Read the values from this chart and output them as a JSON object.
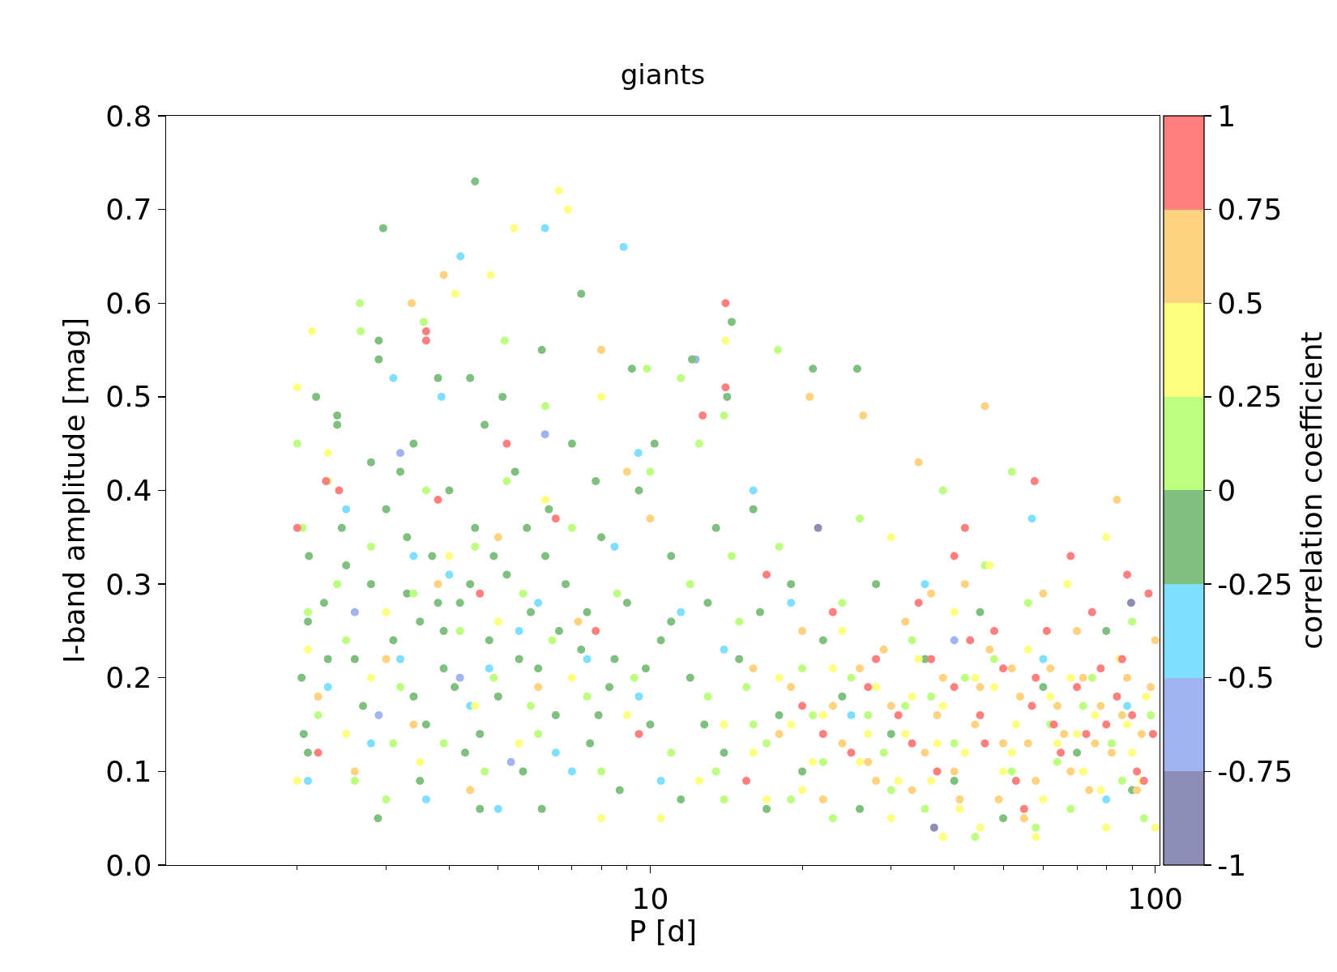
{
  "chart_data": {
    "type": "scatter",
    "title": "giants",
    "xlabel": "P [d]",
    "ylabel": "I-band amplitude [mag]",
    "clabel": "correlation coefficient",
    "log": "x",
    "grid": false,
    "marker": "circle",
    "xlim": [
      1.1,
      102
    ],
    "xticks": [
      {
        "value": 2,
        "label": null
      },
      {
        "value": 3,
        "label": null
      },
      {
        "value": 4,
        "label": null
      },
      {
        "value": 5,
        "label": null
      },
      {
        "value": 6,
        "label": null
      },
      {
        "value": 7,
        "label": null
      },
      {
        "value": 8,
        "label": null
      },
      {
        "value": 9,
        "label": null
      },
      10,
      {
        "value": 20,
        "label": null
      },
      {
        "value": 30,
        "label": null
      },
      {
        "value": 40,
        "label": null
      },
      {
        "value": 50,
        "label": null
      },
      {
        "value": 60,
        "label": null
      },
      {
        "value": 70,
        "label": null
      },
      {
        "value": 80,
        "label": null
      },
      {
        "value": 90,
        "label": null
      },
      100
    ],
    "ylim": [
      0,
      0.8
    ],
    "yticks": [
      {
        "value": 0,
        "label": "0.0"
      },
      0.1,
      0.2,
      0.3,
      0.4,
      0.5,
      0.6,
      0.7,
      0.8
    ],
    "clim": [
      -1,
      1
    ],
    "cticks": [
      -1,
      -0.75,
      -0.5,
      -0.25,
      0,
      0.25,
      0.5,
      0.75,
      1
    ],
    "series": [
      {
        "color": "#8c8cb7",
        "x": [
          89.6,
          36.5,
          21.5
        ],
        "values": [
          0.28,
          0.04,
          0.36
        ]
      },
      {
        "color": "#a0b4f0",
        "x": [
          12.3,
          6.19,
          3.2,
          2.9,
          4.2,
          5.3,
          40,
          2.6
        ],
        "values": [
          0.54,
          0.46,
          0.44,
          0.16,
          0.2,
          0.11,
          0.24,
          0.27
        ]
      },
      {
        "color": "#7fdfff",
        "x": [
          6.19,
          8.86,
          4.21,
          3.86,
          9.47,
          57,
          3.1,
          2.1,
          2.3,
          2.5,
          2.8,
          3.2,
          3.6,
          4,
          4.4,
          5,
          5.5,
          6.5,
          7.5,
          8.5,
          9.5,
          10.5,
          11.5,
          14,
          16,
          19,
          25,
          35,
          60,
          88,
          80,
          3.4,
          4.8,
          6,
          7
        ],
        "values": [
          0.68,
          0.66,
          0.65,
          0.5,
          0.44,
          0.37,
          0.52,
          0.09,
          0.19,
          0.38,
          0.13,
          0.22,
          0.07,
          0.31,
          0.17,
          0.06,
          0.25,
          0.12,
          0.22,
          0.34,
          0.18,
          0.09,
          0.27,
          0.23,
          0.4,
          0.28,
          0.16,
          0.3,
          0.22,
          0.17,
          0.07,
          0.33,
          0.21,
          0.28,
          0.1
        ]
      },
      {
        "color": "#7fbf7f",
        "x": [
          4.5,
          2.96,
          7.3,
          2.9,
          2.9,
          2.18,
          2.4,
          2.4,
          12.1,
          21,
          25.7,
          14.5,
          9.2,
          14.2,
          6.1,
          2.04,
          2.06,
          2.1,
          2.11,
          2.89,
          2.45,
          2.26,
          2.1,
          2.6,
          2.8,
          3,
          3.2,
          3.4,
          3.5,
          3.6,
          3.7,
          3.9,
          4,
          4.2,
          4.3,
          4.5,
          4.7,
          4.8,
          5,
          5.2,
          5.4,
          5.6,
          5.8,
          6,
          6.3,
          6.5,
          6.8,
          7,
          7.3,
          7.6,
          8,
          8.3,
          8.7,
          9,
          9.5,
          10,
          10.5,
          11,
          11.5,
          12,
          13,
          14,
          15,
          16,
          17,
          18,
          19,
          20,
          22,
          24,
          26,
          28,
          30,
          35,
          40,
          45,
          50,
          60,
          70,
          80,
          90,
          2.5,
          2.7,
          3.1,
          3.3,
          3.8,
          4.1,
          4.4,
          5.5,
          6.2,
          7.5,
          8.5,
          3.5,
          4.6,
          6.1,
          5.1,
          4.4,
          3.8,
          3.3,
          3.9,
          4.9,
          5.7,
          6.6,
          4.6,
          3.4,
          2.3,
          7.9,
          9.8,
          11,
          12.8,
          13.5,
          16.5,
          2.8,
          10.2,
          7.8
        ],
        "values": [
          0.73,
          0.68,
          0.61,
          0.56,
          0.54,
          0.5,
          0.48,
          0.47,
          0.54,
          0.53,
          0.53,
          0.58,
          0.53,
          0.5,
          0.55,
          0.2,
          0.14,
          0.12,
          0.33,
          0.05,
          0.36,
          0.28,
          0.26,
          0.22,
          0.3,
          0.38,
          0.42,
          0.45,
          0.26,
          0.15,
          0.33,
          0.21,
          0.4,
          0.28,
          0.12,
          0.36,
          0.47,
          0.24,
          0.18,
          0.31,
          0.42,
          0.1,
          0.27,
          0.21,
          0.38,
          0.16,
          0.3,
          0.45,
          0.23,
          0.13,
          0.35,
          0.19,
          0.08,
          0.28,
          0.4,
          0.15,
          0.24,
          0.33,
          0.07,
          0.2,
          0.28,
          0.12,
          0.22,
          0.38,
          0.06,
          0.16,
          0.3,
          0.1,
          0.24,
          0.18,
          0.06,
          0.3,
          0.14,
          0.22,
          0.09,
          0.27,
          0.05,
          0.19,
          0.12,
          0.25,
          0.08,
          0.32,
          0.17,
          0.24,
          0.35,
          0.28,
          0.19,
          0.3,
          0.22,
          0.33,
          0.27,
          0.22,
          0.09,
          0.06,
          0.06,
          0.5,
          0.52,
          0.52,
          0.29,
          0.25,
          0.33,
          0.36,
          0.25,
          0.14,
          0.18,
          0.22,
          0.16,
          0.21,
          0.26,
          0.15,
          0.36,
          0.27,
          0.43,
          0.45,
          0.41
        ]
      },
      {
        "color": "#bdfd7f",
        "x": [
          2.66,
          3.56,
          2.67,
          5.15,
          8,
          17.9,
          9.85,
          2,
          2.05,
          2.1,
          2.2,
          2.3,
          2.5,
          2.6,
          2.8,
          3,
          3.2,
          3.4,
          3.6,
          3.9,
          4.2,
          4.5,
          4.9,
          5.2,
          5.6,
          6,
          6.4,
          7,
          7.5,
          8,
          8.6,
          9.3,
          10,
          11,
          12,
          13,
          14,
          15,
          16,
          18,
          20,
          22,
          24,
          27,
          30,
          33,
          36,
          40,
          44,
          48,
          52,
          56,
          62,
          68,
          75,
          82,
          90,
          95,
          38,
          52,
          26,
          46,
          98,
          12.5,
          14,
          11.5,
          6.2,
          13.5,
          15.5,
          17,
          19,
          21,
          23,
          25,
          29,
          32,
          35,
          42,
          58,
          64,
          72,
          86,
          14.5,
          3.1,
          4.7,
          5.8,
          2.4
        ],
        "values": [
          0.6,
          0.58,
          0.57,
          0.56,
          0.55,
          0.55,
          0.53,
          0.45,
          0.36,
          0.27,
          0.16,
          0.41,
          0.24,
          0.09,
          0.34,
          0.07,
          0.19,
          0.29,
          0.4,
          0.13,
          0.25,
          0.34,
          0.2,
          0.41,
          0.29,
          0.14,
          0.24,
          0.36,
          0.18,
          0.1,
          0.29,
          0.2,
          0.42,
          0.12,
          0.3,
          0.18,
          0.07,
          0.26,
          0.15,
          0.34,
          0.21,
          0.11,
          0.28,
          0.16,
          0.08,
          0.24,
          0.18,
          0.13,
          0.03,
          0.22,
          0.1,
          0.28,
          0.15,
          0.06,
          0.2,
          0.13,
          0.26,
          0.05,
          0.4,
          0.42,
          0.37,
          0.32,
          0.16,
          0.45,
          0.48,
          0.52,
          0.49,
          0.1,
          0.19,
          0.13,
          0.07,
          0.16,
          0.05,
          0.2,
          0.12,
          0.17,
          0.06,
          0.2,
          0.04,
          0.11,
          0.17,
          0.09,
          0.33,
          0.13,
          0.1,
          0.17,
          0.3
        ]
      },
      {
        "color": "#ffff7f",
        "x": [
          6.59,
          6.87,
          5.38,
          4.83,
          4.11,
          2.14,
          2,
          14.1,
          8,
          2,
          2.1,
          2.3,
          2.5,
          2.8,
          3,
          3.5,
          4,
          4.5,
          5,
          5.5,
          6.2,
          7,
          8,
          9,
          10.5,
          16,
          18,
          20,
          22,
          24,
          26,
          28,
          30,
          32,
          34,
          36,
          38,
          40,
          42,
          45,
          48,
          50,
          53,
          56,
          60,
          64,
          68,
          72,
          76,
          80,
          85,
          90,
          96,
          100,
          47,
          67,
          30,
          80,
          38,
          58,
          17,
          19,
          21,
          23,
          27,
          31,
          33,
          37,
          41,
          44,
          52,
          62,
          70,
          78,
          88,
          94,
          12.5,
          14
        ],
        "values": [
          0.72,
          0.7,
          0.68,
          0.63,
          0.61,
          0.57,
          0.51,
          0.56,
          0.5,
          0.09,
          0.23,
          0.44,
          0.14,
          0.2,
          0.27,
          0.11,
          0.33,
          0.17,
          0.26,
          0.13,
          0.39,
          0.2,
          0.05,
          0.16,
          0.05,
          0.12,
          0.2,
          0.08,
          0.16,
          0.25,
          0.11,
          0.19,
          0.05,
          0.14,
          0.22,
          0.09,
          0.17,
          0.27,
          0.12,
          0.04,
          0.19,
          0.1,
          0.15,
          0.23,
          0.07,
          0.13,
          0.2,
          0.1,
          0.16,
          0.04,
          0.22,
          0.12,
          0.18,
          0.04,
          0.32,
          0.3,
          0.35,
          0.35,
          0.03,
          0.03,
          0.07,
          0.15,
          0.11,
          0.21,
          0.14,
          0.09,
          0.18,
          0.13,
          0.06,
          0.2,
          0.12,
          0.18,
          0.14,
          0.08,
          0.15,
          0.09,
          0.09,
          0.15
        ]
      },
      {
        "color": "#ffd27f",
        "x": [
          3.9,
          3.37,
          20.7,
          46,
          26.4,
          34,
          84,
          8,
          2.2,
          2.6,
          3,
          3.4,
          3.8,
          4.4,
          5,
          6,
          7.2,
          9,
          10,
          18,
          20,
          22,
          24,
          26,
          28,
          30,
          32,
          35,
          38,
          41,
          44,
          47,
          50,
          54,
          58,
          62,
          66,
          70,
          74,
          78,
          82,
          88,
          94,
          100,
          42,
          60,
          55,
          36,
          19,
          23,
          27,
          29,
          33,
          37,
          40,
          45,
          49,
          52,
          56,
          64,
          68,
          72,
          76,
          86,
          92,
          98,
          16
        ],
        "values": [
          0.63,
          0.6,
          0.5,
          0.49,
          0.48,
          0.43,
          0.39,
          0.55,
          0.18,
          0.1,
          0.22,
          0.15,
          0.3,
          0.08,
          0.35,
          0.19,
          0.26,
          0.42,
          0.37,
          0.14,
          0.25,
          0.07,
          0.13,
          0.21,
          0.09,
          0.17,
          0.26,
          0.12,
          0.2,
          0.07,
          0.15,
          0.23,
          0.13,
          0.18,
          0.09,
          0.21,
          0.14,
          0.25,
          0.08,
          0.17,
          0.12,
          0.2,
          0.14,
          0.24,
          0.3,
          0.29,
          0.05,
          0.29,
          0.19,
          0.17,
          0.11,
          0.23,
          0.08,
          0.16,
          0.1,
          0.19,
          0.07,
          0.21,
          0.13,
          0.17,
          0.1,
          0.2,
          0.13,
          0.16,
          0.08,
          0.19,
          0.21
        ]
      },
      {
        "color": "#ff7f7f",
        "x": [
          3.6,
          3.6,
          14.1,
          14.1,
          2.28,
          2.42,
          5.2,
          57.7,
          42,
          12.7,
          2,
          2.2,
          3.8,
          4.6,
          6.5,
          7.8,
          9.5,
          20,
          23,
          25,
          28,
          31,
          34,
          37,
          40,
          43,
          46,
          50,
          53,
          57,
          61,
          65,
          70,
          75,
          80,
          86,
          92,
          97,
          68,
          88,
          55,
          95,
          40,
          22,
          27,
          33,
          36,
          45,
          48,
          58,
          63,
          73,
          78,
          84,
          90,
          99,
          17,
          15.5
        ],
        "values": [
          0.57,
          0.56,
          0.6,
          0.51,
          0.41,
          0.4,
          0.45,
          0.41,
          0.36,
          0.48,
          0.36,
          0.12,
          0.39,
          0.29,
          0.37,
          0.25,
          0.14,
          0.17,
          0.27,
          0.12,
          0.22,
          0.16,
          0.28,
          0.1,
          0.19,
          0.24,
          0.13,
          0.21,
          0.09,
          0.17,
          0.25,
          0.12,
          0.19,
          0.27,
          0.15,
          0.22,
          0.1,
          0.29,
          0.33,
          0.31,
          0.06,
          0.09,
          0.33,
          0.14,
          0.19,
          0.13,
          0.22,
          0.16,
          0.25,
          0.2,
          0.15,
          0.14,
          0.21,
          0.18,
          0.16,
          0.14,
          0.31,
          0.09
        ]
      }
    ]
  }
}
